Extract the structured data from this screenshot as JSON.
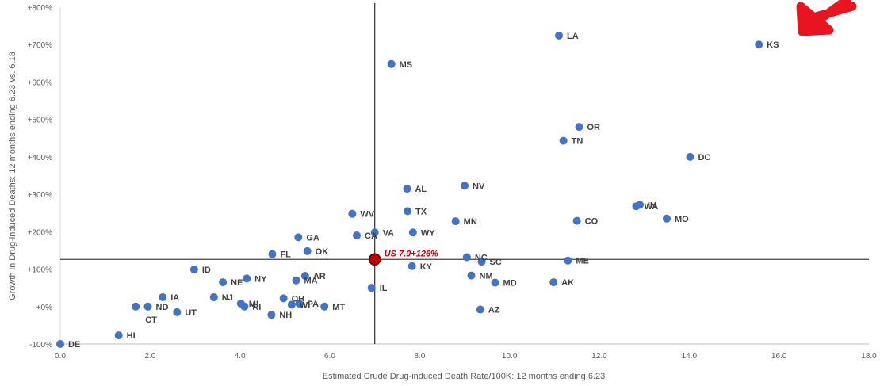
{
  "chart_data": {
    "type": "scatter",
    "title": "",
    "xlabel": "Estimated Crude Drug-induced Death Rate/100K: 12 months ending 6.23",
    "ylabel": "Growth in Drug-induced Deaths: 12 months ending 6.23 vs. 6.18",
    "xlim": [
      0,
      18
    ],
    "ylim": [
      -100,
      800
    ],
    "x_ticks": [
      "0.0",
      "2.0",
      "4.0",
      "6.0",
      "8.0",
      "10.0",
      "12.0",
      "14.0",
      "16.0",
      "18.0"
    ],
    "y_ticks": [
      "-100%",
      "+0%",
      "+100%",
      "+200%",
      "+300%",
      "+400%",
      "+500%",
      "+600%",
      "+700%",
      "+800%"
    ],
    "grid": false,
    "point_color": "#4472c4",
    "reference_lines": {
      "x": 7.0,
      "y": 126
    },
    "highlight": {
      "label": "US 7.0+126%",
      "x": 7.0,
      "y": 126,
      "color": "#c00000"
    },
    "points": [
      {
        "label": "DE",
        "x": 0.0,
        "y": -100
      },
      {
        "label": "HI",
        "x": 1.3,
        "y": -77
      },
      {
        "label": "CT",
        "x": 1.68,
        "y": 0
      },
      {
        "label": "ND",
        "x": 1.95,
        "y": 0
      },
      {
        "label": "IA",
        "x": 2.28,
        "y": 25
      },
      {
        "label": "UT",
        "x": 2.6,
        "y": -15
      },
      {
        "label": "ID",
        "x": 2.98,
        "y": 99
      },
      {
        "label": "NJ",
        "x": 3.42,
        "y": 25
      },
      {
        "label": "NE",
        "x": 3.62,
        "y": 65
      },
      {
        "label": "MI",
        "x": 4.02,
        "y": 8
      },
      {
        "label": "RI",
        "x": 4.1,
        "y": 0
      },
      {
        "label": "NY",
        "x": 4.15,
        "y": 75
      },
      {
        "label": "NH",
        "x": 4.7,
        "y": -22
      },
      {
        "label": "FL",
        "x": 4.72,
        "y": 140
      },
      {
        "label": "OH",
        "x": 4.97,
        "y": 22
      },
      {
        "label": "WI",
        "x": 5.15,
        "y": 5
      },
      {
        "label": "MA",
        "x": 5.25,
        "y": 70
      },
      {
        "label": "GA",
        "x": 5.3,
        "y": 185
      },
      {
        "label": "PA",
        "x": 5.32,
        "y": 8
      },
      {
        "label": "AR",
        "x": 5.45,
        "y": 82
      },
      {
        "label": "OK",
        "x": 5.5,
        "y": 148
      },
      {
        "label": "MT",
        "x": 5.88,
        "y": 0
      },
      {
        "label": "WV",
        "x": 6.5,
        "y": 248
      },
      {
        "label": "CA",
        "x": 6.6,
        "y": 190
      },
      {
        "label": "IL",
        "x": 6.93,
        "y": 50
      },
      {
        "label": "VA",
        "x": 7.0,
        "y": 198
      },
      {
        "label": "MS",
        "x": 7.37,
        "y": 648
      },
      {
        "label": "AL",
        "x": 7.72,
        "y": 315
      },
      {
        "label": "TX",
        "x": 7.73,
        "y": 255
      },
      {
        "label": "KY",
        "x": 7.83,
        "y": 108
      },
      {
        "label": "WY",
        "x": 7.85,
        "y": 198
      },
      {
        "label": "MN",
        "x": 8.8,
        "y": 228
      },
      {
        "label": "NV",
        "x": 9.0,
        "y": 323
      },
      {
        "label": "NC",
        "x": 9.05,
        "y": 132
      },
      {
        "label": "NM",
        "x": 9.15,
        "y": 83
      },
      {
        "label": "AZ",
        "x": 9.35,
        "y": -8
      },
      {
        "label": "SC",
        "x": 9.38,
        "y": 120
      },
      {
        "label": "MD",
        "x": 9.68,
        "y": 64
      },
      {
        "label": "AK",
        "x": 10.98,
        "y": 65
      },
      {
        "label": "LA",
        "x": 11.1,
        "y": 724
      },
      {
        "label": "TN",
        "x": 11.2,
        "y": 443
      },
      {
        "label": "ME",
        "x": 11.3,
        "y": 123
      },
      {
        "label": "CO",
        "x": 11.5,
        "y": 229
      },
      {
        "label": "OR",
        "x": 11.55,
        "y": 480
      },
      {
        "label": "WA",
        "x": 12.82,
        "y": 268
      },
      {
        "label": "IN",
        "x": 12.9,
        "y": 272
      },
      {
        "label": "MO",
        "x": 13.5,
        "y": 235
      },
      {
        "label": "DC",
        "x": 14.02,
        "y": 400
      },
      {
        "label": "KS",
        "x": 15.55,
        "y": 700
      }
    ]
  }
}
